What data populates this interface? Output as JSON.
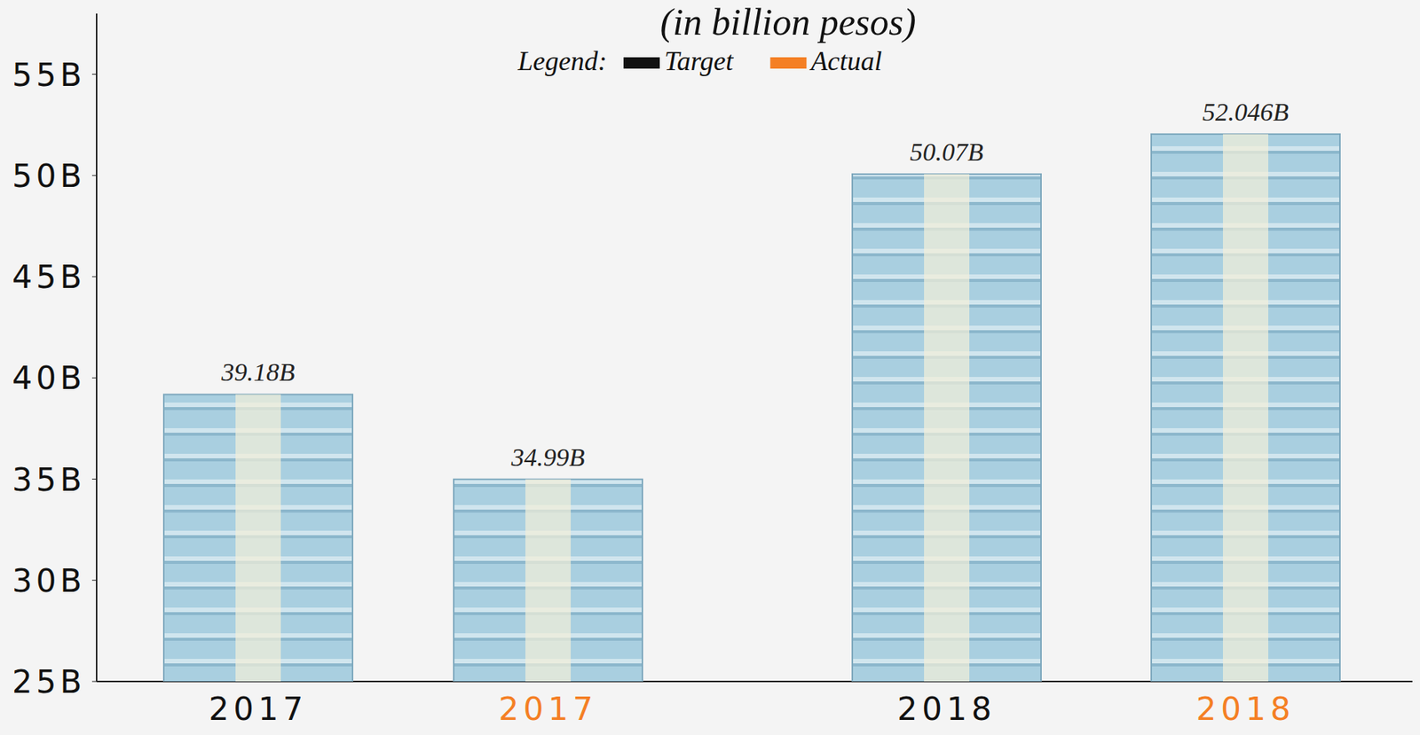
{
  "chart_data": {
    "type": "bar",
    "title": "(in billion pesos)",
    "legend_title": "Legend:",
    "categories": [
      "2017",
      "2017",
      "2018",
      "2018"
    ],
    "series": [
      {
        "name": "Target",
        "color": "#111111",
        "values": [
          39.18,
          null,
          50.07,
          null
        ],
        "value_labels": [
          "39.18B",
          null,
          "50.07B",
          null
        ]
      },
      {
        "name": "Actual",
        "color": "#f47f24",
        "values": [
          null,
          34.99,
          null,
          52.046
        ],
        "value_labels": [
          null,
          "34.99B",
          null,
          "52.046B"
        ]
      }
    ],
    "color": "#a9cfe0",
    "ylim": [
      25,
      58
    ],
    "yticks": [
      {
        "value": 25,
        "label": "25B"
      },
      {
        "value": 30,
        "label": "30B"
      },
      {
        "value": 35,
        "label": "35B"
      },
      {
        "value": 40,
        "label": "40B"
      },
      {
        "value": 45,
        "label": "45B"
      },
      {
        "value": 50,
        "label": "50B"
      },
      {
        "value": 55,
        "label": "55B"
      }
    ],
    "data_labels": true,
    "grid": false,
    "legend": "top"
  }
}
